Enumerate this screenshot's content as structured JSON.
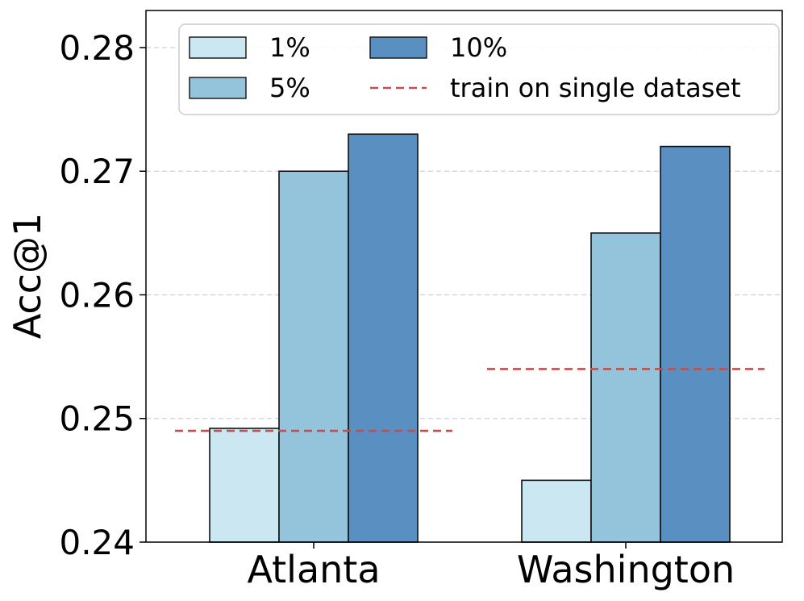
{
  "chart_data": {
    "type": "bar",
    "categories": [
      "Atlanta",
      "Washington"
    ],
    "series": [
      {
        "name": "1%",
        "values": [
          0.2492,
          0.245
        ],
        "color": "#cbe7f1"
      },
      {
        "name": "5%",
        "values": [
          0.27,
          0.265
        ],
        "color": "#93c4dc"
      },
      {
        "name": "10%",
        "values": [
          0.273,
          0.272
        ],
        "color": "#5a8fc2"
      }
    ],
    "baseline": {
      "name": "train on single dataset",
      "values": [
        0.249,
        0.254
      ],
      "color": "#c0504d",
      "style": "dashed"
    },
    "title": "",
    "xlabel": "",
    "ylabel": "Acc@1",
    "ylim": [
      0.24,
      0.283
    ],
    "yticks": [
      0.24,
      0.25,
      0.26,
      0.27,
      0.28
    ],
    "ytick_labels": [
      "0.24",
      "0.25",
      "0.26",
      "0.27",
      "0.28"
    ],
    "grid": "y-dashed",
    "legend_position": "top"
  }
}
